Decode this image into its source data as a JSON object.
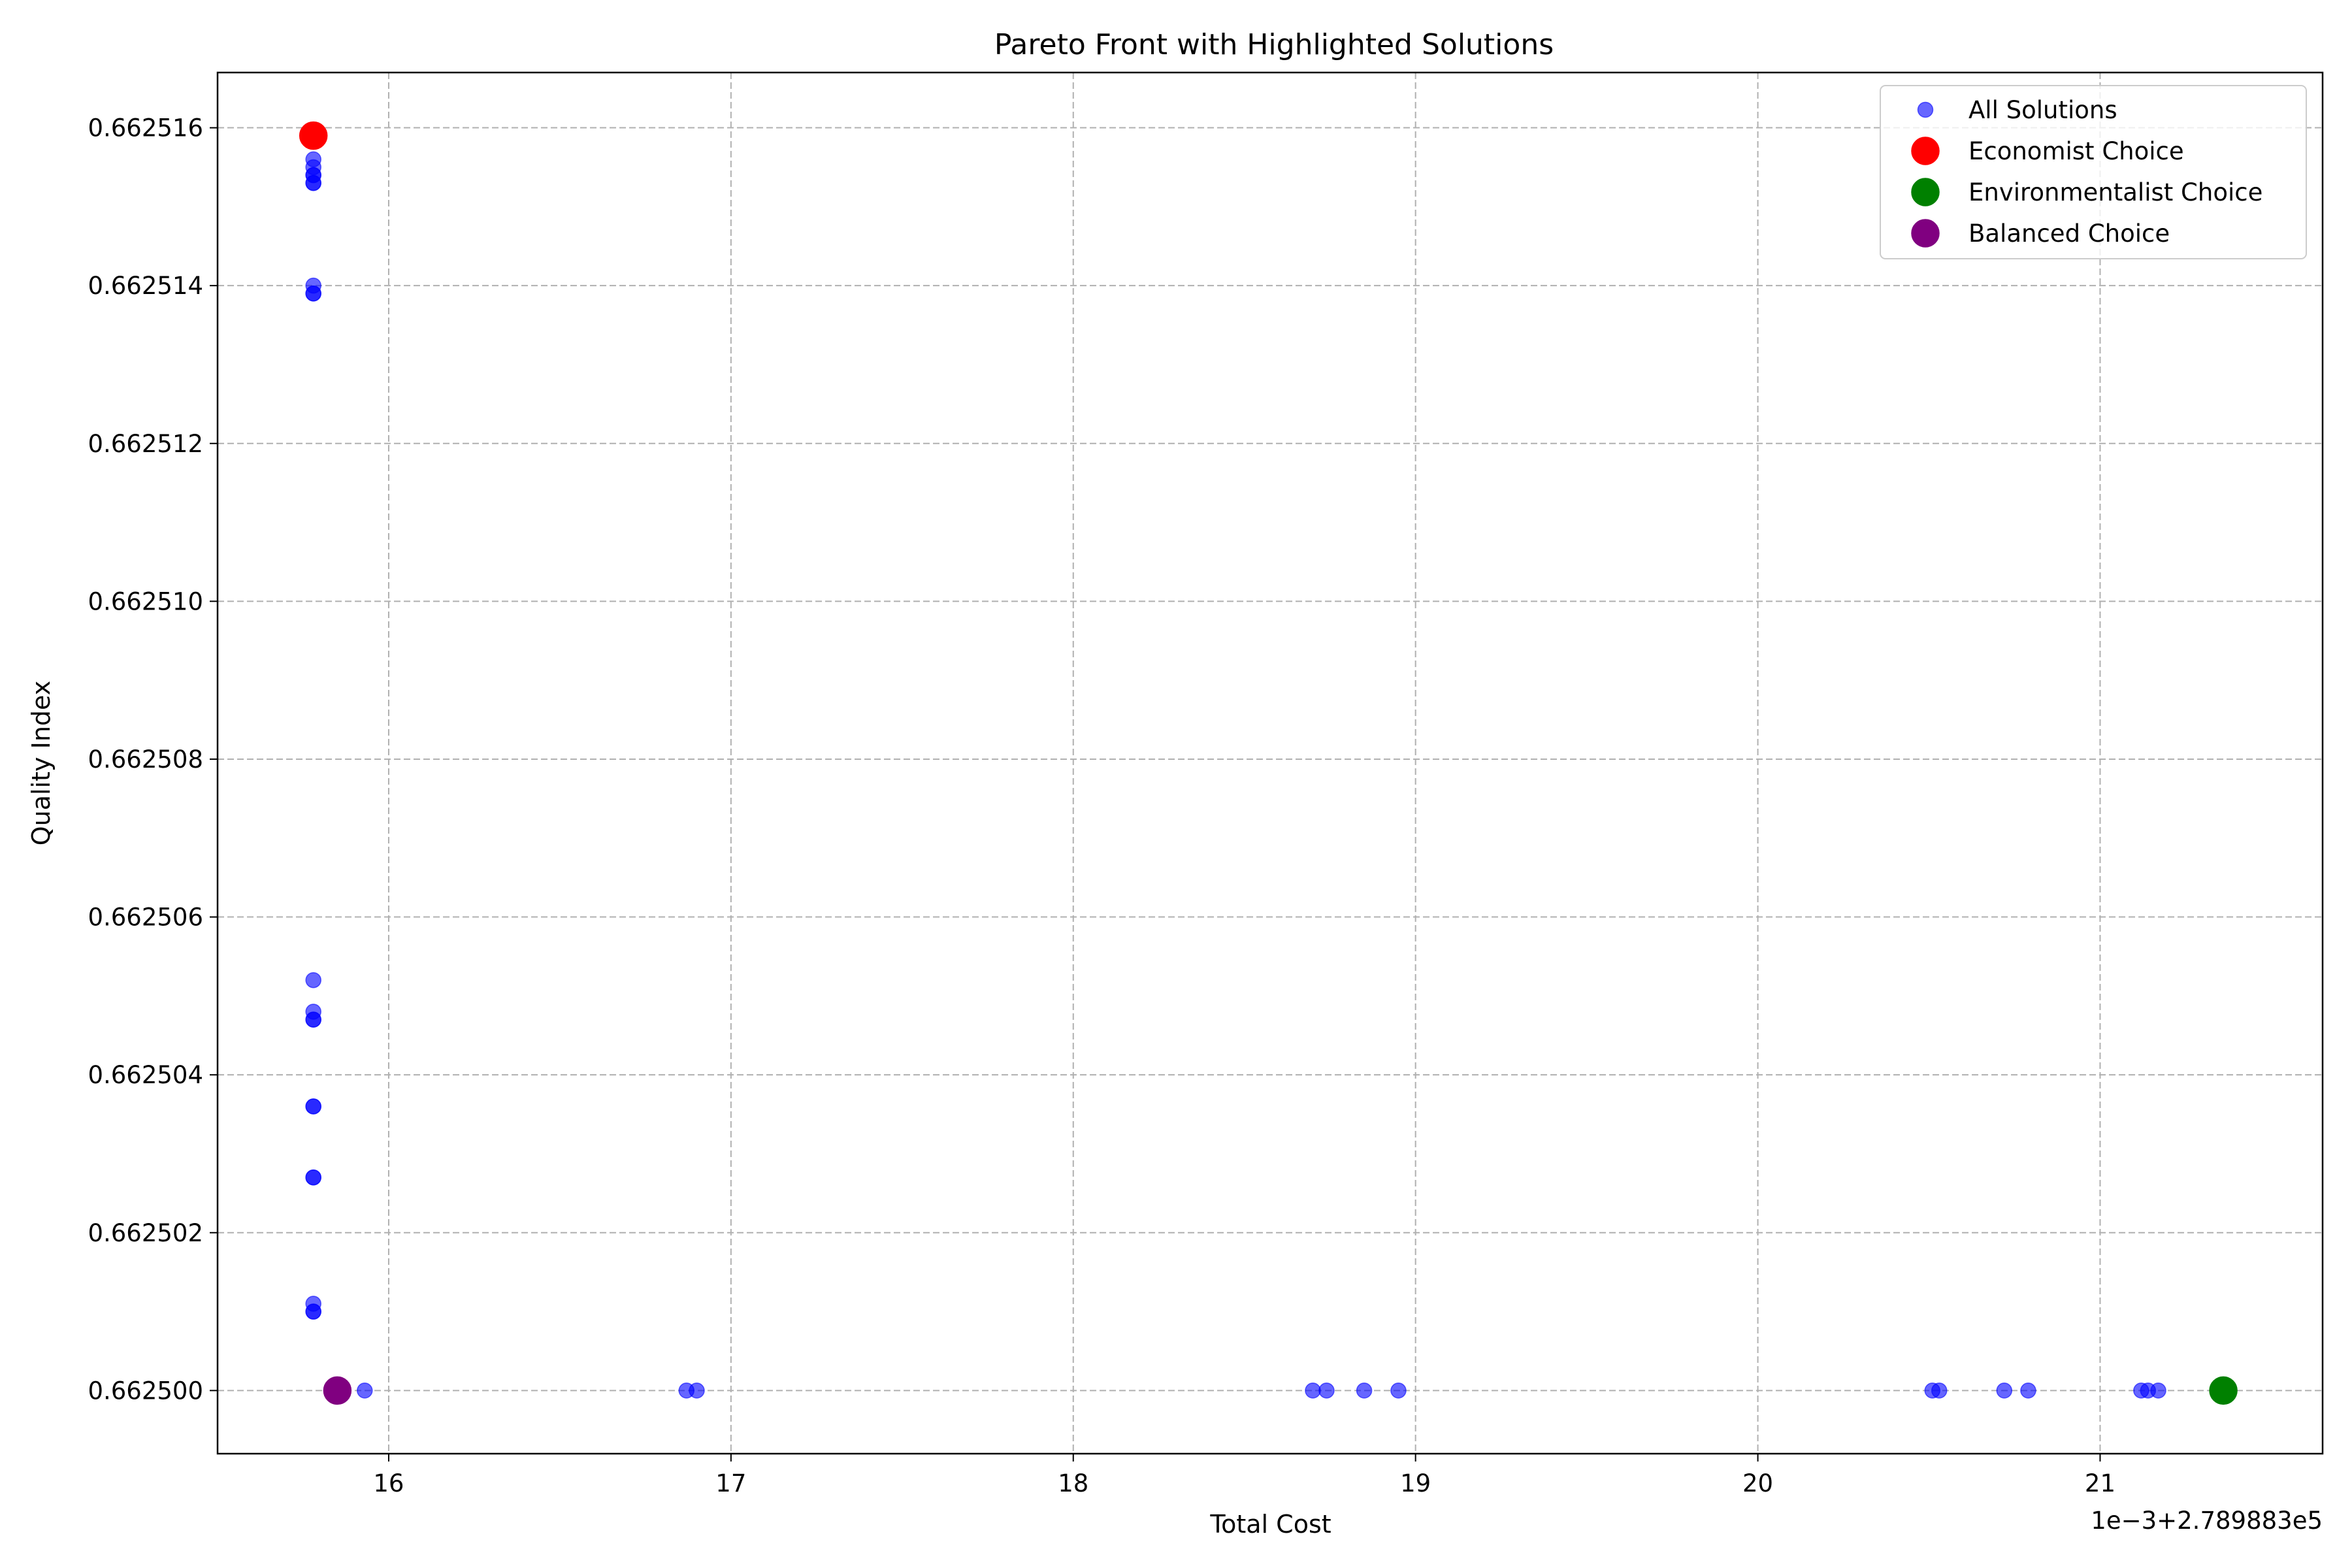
{
  "chart_data": {
    "type": "scatter",
    "title": "Pareto Front with Highlighted Solutions",
    "xlabel": "Total Cost",
    "ylabel": "Quality Index",
    "x_offset_label": "1e−3+2.789883e5",
    "xlim": [
      15.5,
      21.65
    ],
    "ylim": [
      0.6624992,
      0.6625167
    ],
    "xticks": [
      16,
      17,
      18,
      19,
      20,
      21
    ],
    "x_tick_labels": [
      "16",
      "17",
      "18",
      "19",
      "20",
      "21"
    ],
    "yticks": [
      0.6625,
      0.662502,
      0.662504,
      0.662506,
      0.662508,
      0.66251,
      0.662512,
      0.662514,
      0.662516
    ],
    "y_tick_labels": [
      "0.662500",
      "0.662502",
      "0.662504",
      "0.662506",
      "0.662508",
      "0.662510",
      "0.662512",
      "0.662514",
      "0.662516"
    ],
    "grid": true,
    "legend_position": "top-right",
    "series": [
      {
        "name": "All Solutions",
        "color": "#0000ff",
        "alpha": 0.6,
        "marker": "small-circle",
        "points": [
          {
            "x": 15.78,
            "y": 0.6625156
          },
          {
            "x": 15.78,
            "y": 0.6625155
          },
          {
            "x": 15.78,
            "y": 0.6625154
          },
          {
            "x": 15.78,
            "y": 0.6625154
          },
          {
            "x": 15.78,
            "y": 0.6625153
          },
          {
            "x": 15.78,
            "y": 0.6625153
          },
          {
            "x": 15.78,
            "y": 0.662514
          },
          {
            "x": 15.78,
            "y": 0.6625139
          },
          {
            "x": 15.78,
            "y": 0.6625139
          },
          {
            "x": 15.78,
            "y": 0.6625052
          },
          {
            "x": 15.78,
            "y": 0.6625048
          },
          {
            "x": 15.78,
            "y": 0.6625047
          },
          {
            "x": 15.78,
            "y": 0.6625047
          },
          {
            "x": 15.78,
            "y": 0.6625036
          },
          {
            "x": 15.78,
            "y": 0.6625036
          },
          {
            "x": 15.78,
            "y": 0.6625027
          },
          {
            "x": 15.78,
            "y": 0.6625027
          },
          {
            "x": 15.78,
            "y": 0.6625011
          },
          {
            "x": 15.78,
            "y": 0.662501
          },
          {
            "x": 15.78,
            "y": 0.662501
          },
          {
            "x": 15.93,
            "y": 0.6625
          },
          {
            "x": 16.87,
            "y": 0.6625
          },
          {
            "x": 16.9,
            "y": 0.6625
          },
          {
            "x": 18.7,
            "y": 0.6625
          },
          {
            "x": 18.74,
            "y": 0.6625
          },
          {
            "x": 18.85,
            "y": 0.6625
          },
          {
            "x": 18.95,
            "y": 0.6625
          },
          {
            "x": 20.51,
            "y": 0.6625
          },
          {
            "x": 20.53,
            "y": 0.6625
          },
          {
            "x": 20.72,
            "y": 0.6625
          },
          {
            "x": 20.79,
            "y": 0.6625
          },
          {
            "x": 21.12,
            "y": 0.6625
          },
          {
            "x": 21.14,
            "y": 0.6625
          },
          {
            "x": 21.17,
            "y": 0.6625
          }
        ]
      },
      {
        "name": "Economist Choice",
        "color": "#ff0000",
        "alpha": 1,
        "marker": "large-circle",
        "points": [
          {
            "x": 15.78,
            "y": 0.6625159
          }
        ]
      },
      {
        "name": "Environmentalist Choice",
        "color": "#008000",
        "alpha": 1,
        "marker": "large-circle",
        "points": [
          {
            "x": 21.36,
            "y": 0.6625
          }
        ]
      },
      {
        "name": "Balanced Choice",
        "color": "#800080",
        "alpha": 1,
        "marker": "large-circle",
        "points": [
          {
            "x": 15.85,
            "y": 0.6625
          }
        ]
      }
    ]
  }
}
